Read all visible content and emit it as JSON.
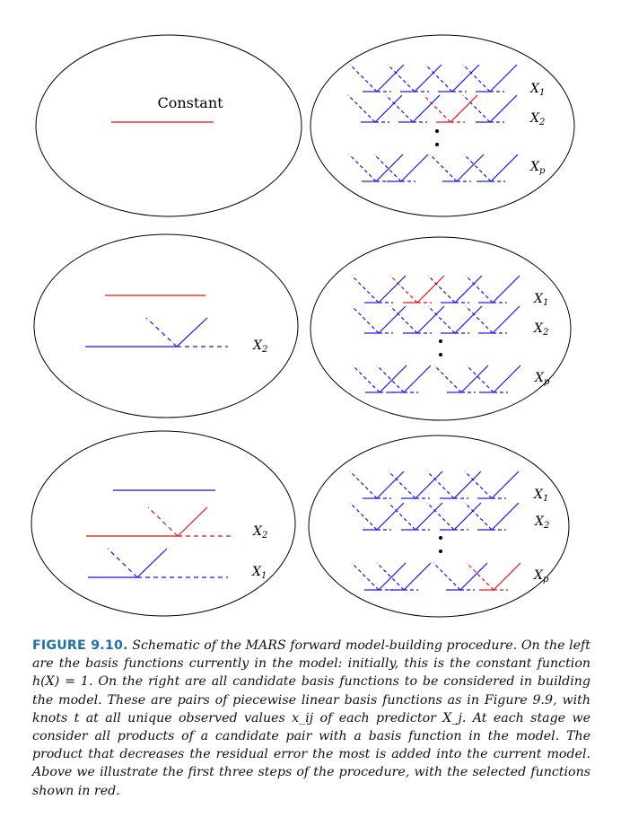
{
  "figure": {
    "colors": {
      "selected": "#e01010",
      "candidate": "#1414e6",
      "outline": "#000000"
    },
    "stages": [
      {
        "model_labels": [
          "Constant"
        ],
        "candidate_rows": [
          "X_1",
          "X_2",
          "X_p"
        ]
      },
      {
        "model_labels": [
          "X_2"
        ],
        "candidate_rows": [
          "X_1",
          "X_2",
          "X_p"
        ]
      },
      {
        "model_labels": [
          "X_2",
          "X_1"
        ],
        "candidate_rows": [
          "X_1",
          "X_2",
          "X_p"
        ]
      }
    ]
  },
  "caption": {
    "label": "FIGURE 9.10.",
    "text": "Schematic of the MARS forward model-building procedure. On the left are the basis functions currently in the model: initially, this is the constant function h(X) = 1. On the right are all candidate basis functions to be considered in building the model. These are pairs of piecewise linear basis functions as in Figure 9.9, with knots t at all unique observed values x_ij of each predictor X_j. At each stage we consider all products of a candidate pair with a basis function in the model. The product that decreases the residual error the most is added into the current model. Above we illustrate the first three steps of the procedure, with the selected functions shown in red."
  }
}
